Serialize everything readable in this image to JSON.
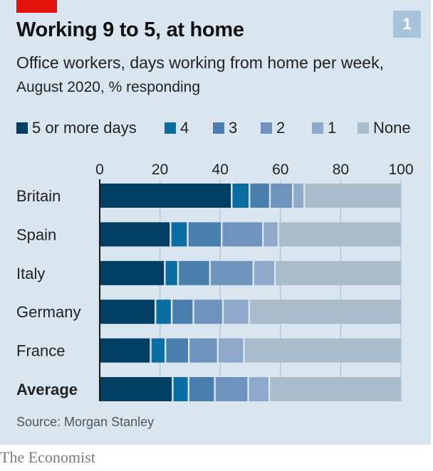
{
  "header": {
    "title": "Working 9 to 5, at home",
    "subtitle_main": "Office workers, days working from home per week,",
    "subtitle_unit": "August 2020, % responding",
    "badge": "1"
  },
  "footer": {
    "source": "Source: Morgan Stanley",
    "brand": "The Economist"
  },
  "colors": {
    "background": "#d9e6f0",
    "accent_red": "#e3120b",
    "series": [
      "#003f63",
      "#0b6ea2",
      "#4a7fad",
      "#6e93bc",
      "#8ea9ca",
      "#a9bccb"
    ]
  },
  "chart_data": {
    "type": "bar",
    "orientation": "horizontal",
    "stacked": true,
    "title": "Working 9 to 5, at home",
    "subtitle": "Office workers, days working from home per week, August 2020, % responding",
    "xlabel": "",
    "ylabel": "",
    "xlim": [
      0,
      100
    ],
    "x_ticks": [
      0,
      20,
      40,
      60,
      80,
      100
    ],
    "x_tick_labels": [
      "0",
      "20",
      "40",
      "60",
      "80",
      "100"
    ],
    "x_axis_position": "top",
    "grid": true,
    "legend_position": "top",
    "categories": [
      "Britain",
      "Spain",
      "Italy",
      "Germany",
      "France",
      "Average"
    ],
    "bold_categories": [
      "Average"
    ],
    "series": [
      {
        "name": "5 or more days",
        "values": [
          43.8,
          23.5,
          21.6,
          18.5,
          16.9,
          24.2
        ]
      },
      {
        "name": "4",
        "values": [
          5.9,
          5.7,
          4.4,
          5.4,
          4.9,
          5.3
        ]
      },
      {
        "name": "3",
        "values": [
          6.8,
          11.3,
          10.6,
          7.2,
          7.8,
          8.7
        ]
      },
      {
        "name": "2",
        "values": [
          7.6,
          13.7,
          14.4,
          9.8,
          9.6,
          11.1
        ]
      },
      {
        "name": "1",
        "values": [
          3.8,
          5.1,
          7.2,
          8.7,
          8.7,
          7.0
        ]
      },
      {
        "name": "None",
        "values": [
          32.1,
          40.7,
          41.8,
          50.4,
          52.1,
          43.7
        ]
      }
    ],
    "source": "Morgan Stanley"
  }
}
